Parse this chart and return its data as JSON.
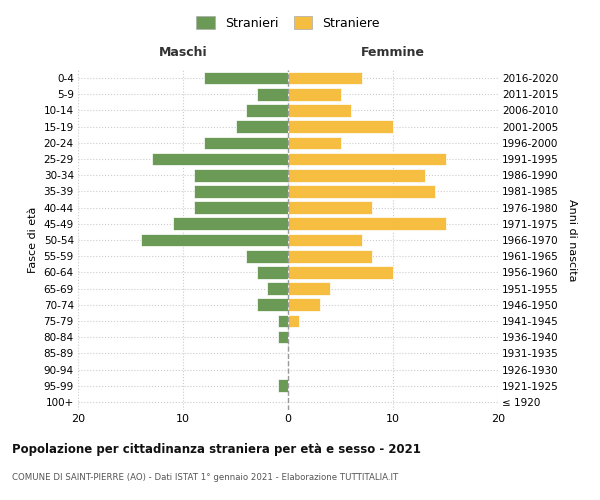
{
  "age_groups": [
    "0-4",
    "5-9",
    "10-14",
    "15-19",
    "20-24",
    "25-29",
    "30-34",
    "35-39",
    "40-44",
    "45-49",
    "50-54",
    "55-59",
    "60-64",
    "65-69",
    "70-74",
    "75-79",
    "80-84",
    "85-89",
    "90-94",
    "95-99",
    "100+"
  ],
  "birth_years": [
    "2016-2020",
    "2011-2015",
    "2006-2010",
    "2001-2005",
    "1996-2000",
    "1991-1995",
    "1986-1990",
    "1981-1985",
    "1976-1980",
    "1971-1975",
    "1966-1970",
    "1961-1965",
    "1956-1960",
    "1951-1955",
    "1946-1950",
    "1941-1945",
    "1936-1940",
    "1931-1935",
    "1926-1930",
    "1921-1925",
    "≤ 1920"
  ],
  "maschi": [
    8,
    3,
    4,
    5,
    8,
    13,
    9,
    9,
    9,
    11,
    14,
    4,
    3,
    2,
    3,
    1,
    1,
    0,
    0,
    1,
    0
  ],
  "femmine": [
    7,
    5,
    6,
    10,
    5,
    15,
    13,
    14,
    8,
    15,
    7,
    8,
    10,
    4,
    3,
    1,
    0,
    0,
    0,
    0,
    0
  ],
  "male_color": "#6a9a56",
  "female_color": "#f5be41",
  "bar_edge_color": "#ffffff",
  "title": "Popolazione per cittadinanza straniera per età e sesso - 2021",
  "subtitle": "COMUNE DI SAINT-PIERRE (AO) - Dati ISTAT 1° gennaio 2021 - Elaborazione TUTTITALIA.IT",
  "xlabel_left": "Maschi",
  "xlabel_right": "Femmine",
  "ylabel": "Fasce di età",
  "ylabel_right": "Anni di nascita",
  "legend_male": "Stranieri",
  "legend_female": "Straniere",
  "xlim": 20,
  "background_color": "#ffffff",
  "grid_color": "#cccccc",
  "dashed_line_color": "#999999"
}
